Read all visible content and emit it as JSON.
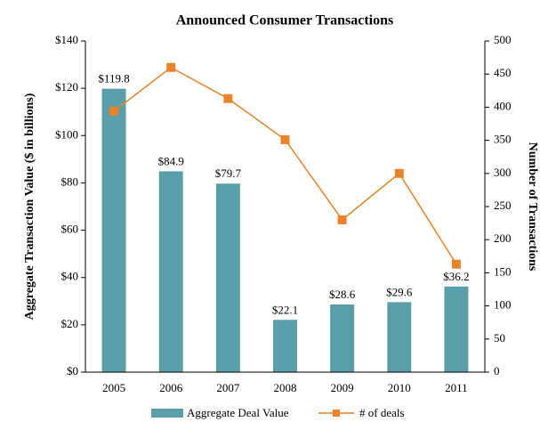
{
  "chart_data": {
    "type": "bar",
    "title": "Announced Consumer Transactions",
    "y_label": "Aggregate Transaction Value ($ in billions)",
    "y2_label": "Number of Transactions",
    "categories": [
      "2005",
      "2006",
      "2007",
      "2008",
      "2009",
      "2010",
      "2011"
    ],
    "series": [
      {
        "name": "Aggregate Deal Value",
        "type": "bar",
        "color": "#5a9ea9",
        "values": [
          119.8,
          84.9,
          79.7,
          22.1,
          28.6,
          29.6,
          36.2
        ],
        "value_labels": [
          "$119.8",
          "$84.9",
          "$79.7",
          "$22.1",
          "$28.6",
          "$29.6",
          "$36.2"
        ]
      },
      {
        "name": "# of deals",
        "type": "line",
        "axis": "y2",
        "color": "#e8832a",
        "values": [
          394,
          460,
          413,
          351,
          230,
          300,
          163
        ]
      }
    ],
    "ylim": [
      0,
      140
    ],
    "yticks": [
      {
        "value": 0,
        "label": "$0"
      },
      {
        "value": 20,
        "label": "$20"
      },
      {
        "value": 40,
        "label": "$40"
      },
      {
        "value": 60,
        "label": "$60"
      },
      {
        "value": 80,
        "label": "$80"
      },
      {
        "value": 100,
        "label": "$100"
      },
      {
        "value": 120,
        "label": "$120"
      },
      {
        "value": 140,
        "label": "$140"
      }
    ],
    "y2lim": [
      0,
      500
    ],
    "y2ticks": [
      0,
      50,
      100,
      150,
      200,
      250,
      300,
      350,
      400,
      450,
      500
    ],
    "legend": "bottom"
  }
}
